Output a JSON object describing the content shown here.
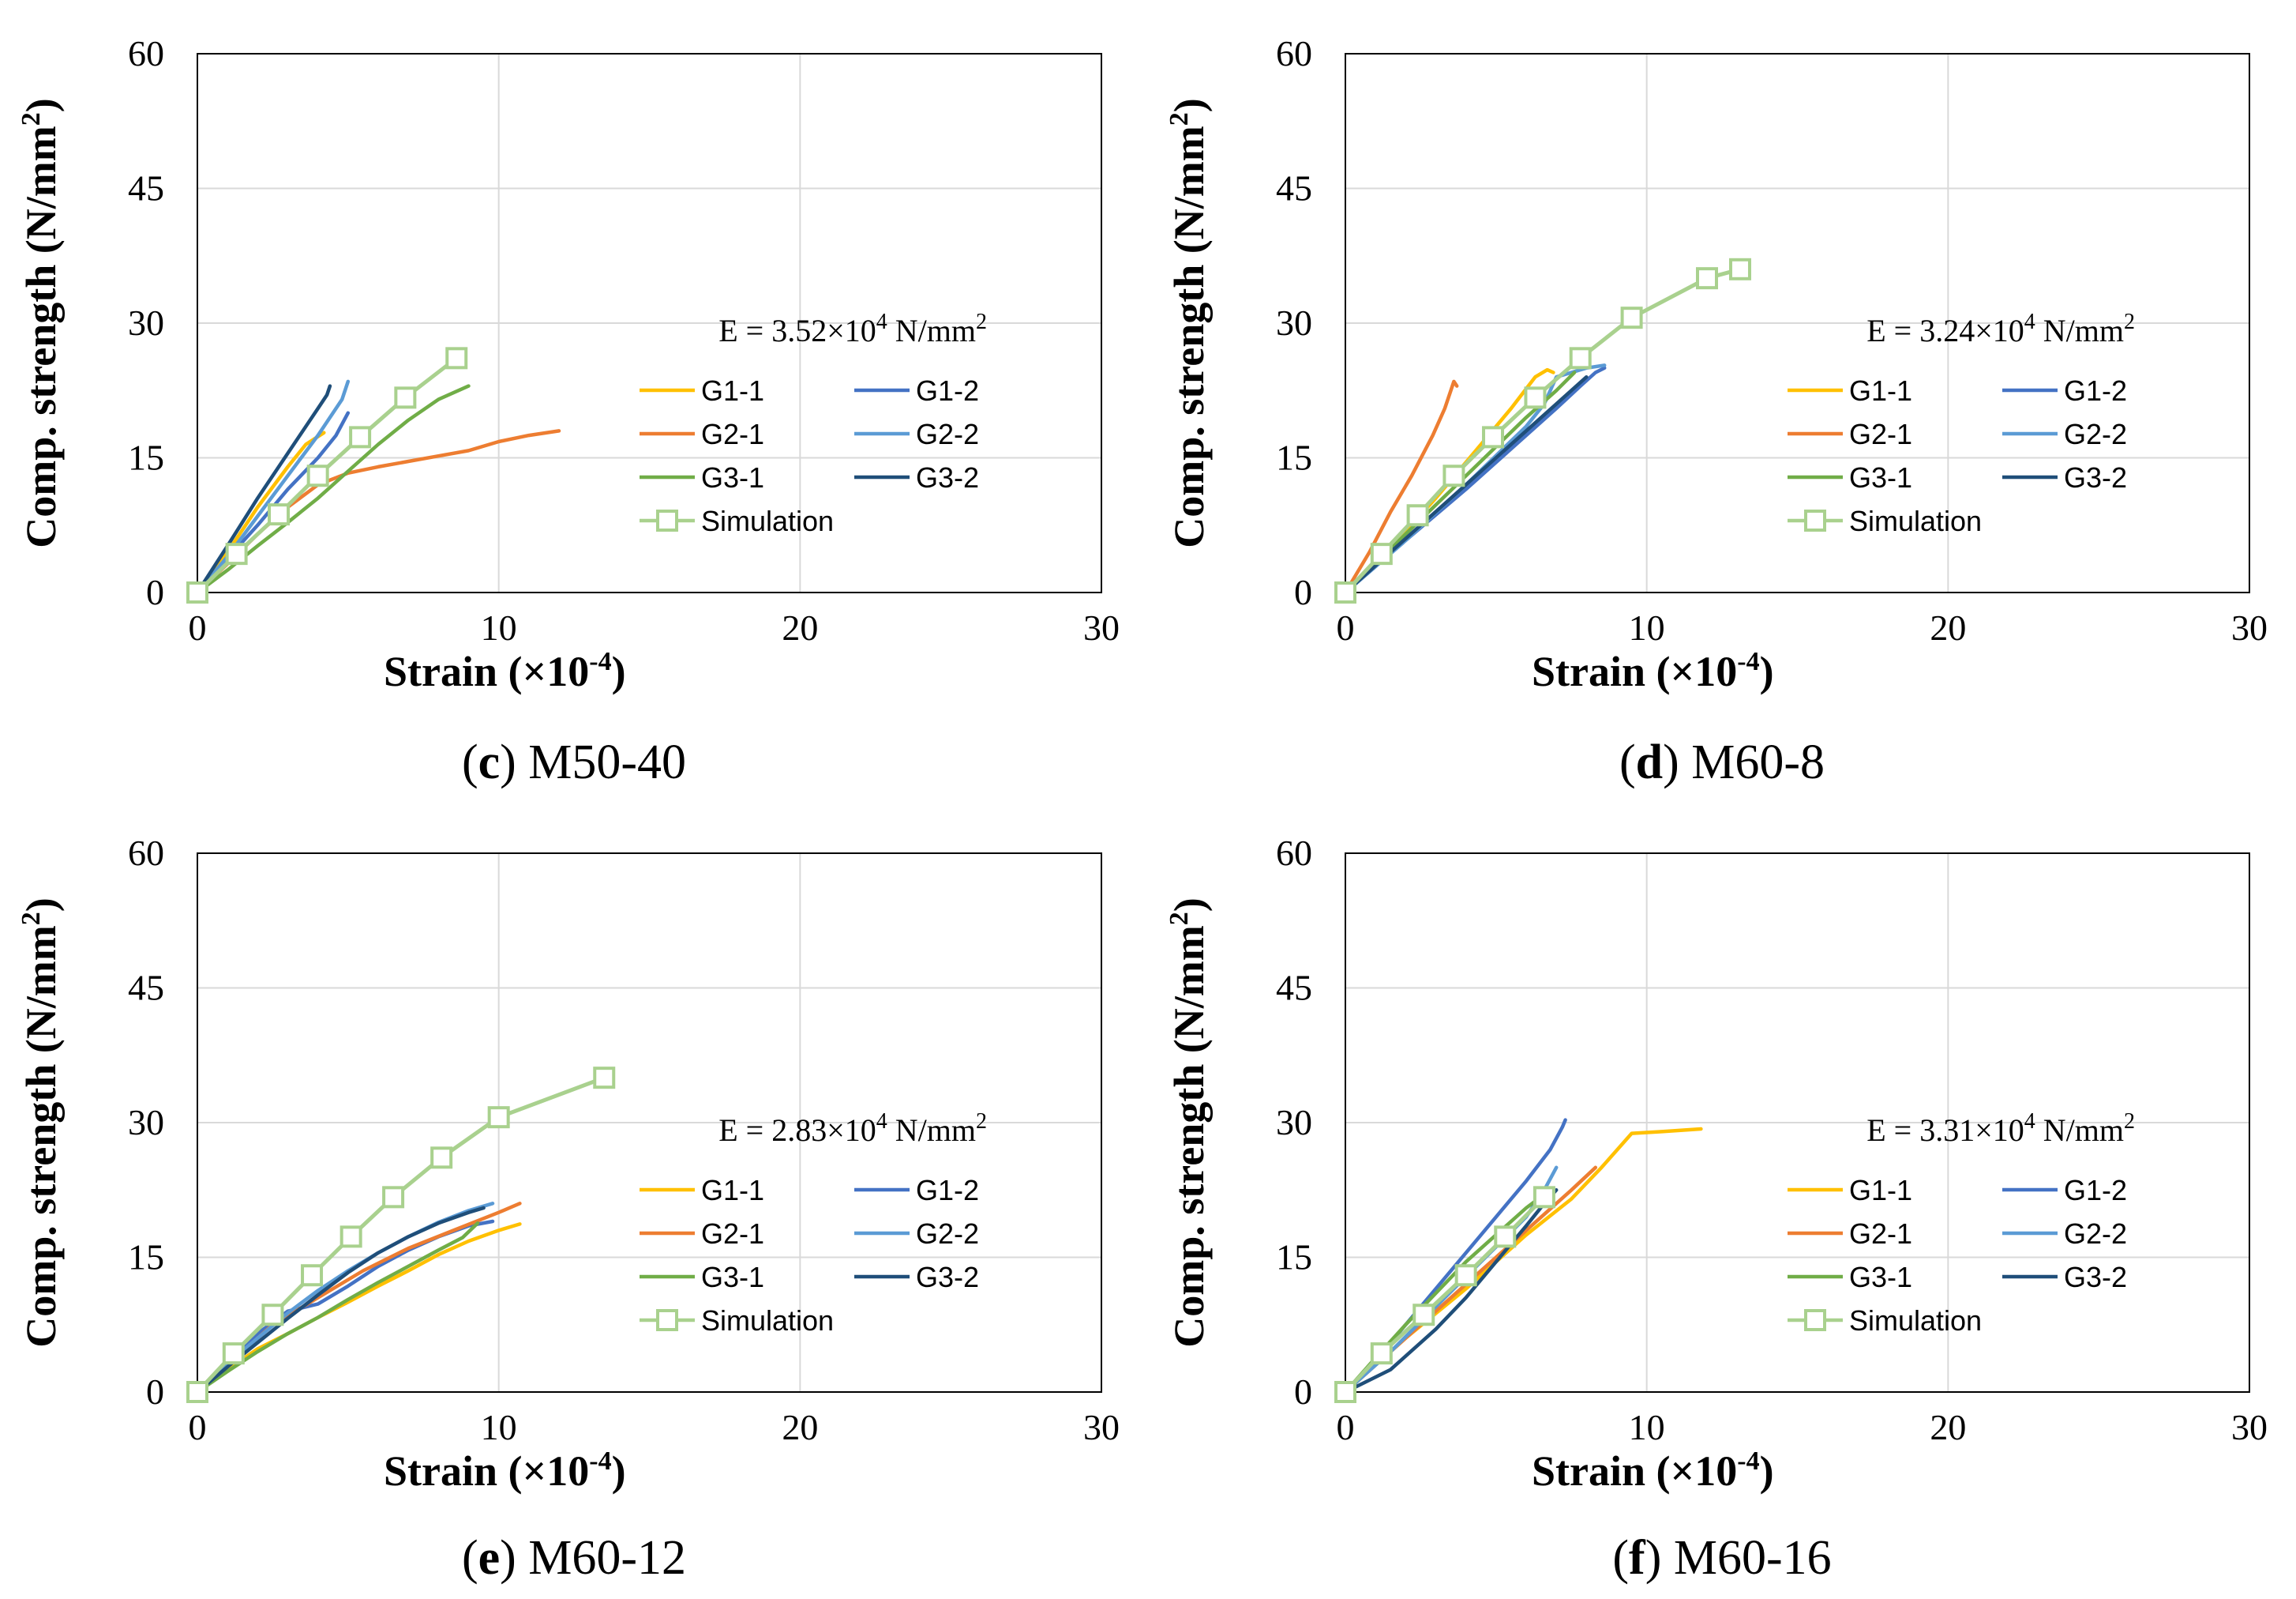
{
  "chart_data": [
    {
      "type": "line",
      "panel_letter": "c",
      "panel_name": "M50-40",
      "xlabel": "Strain (×10",
      "xlabel_sup": "-4",
      "xlabel_end": ")",
      "ylabel": "Comp. strength (N/mm",
      "ylabel_sup": "2",
      "ylabel_end": ")",
      "xlim": [
        0,
        30
      ],
      "ylim": [
        0,
        60
      ],
      "xticks": [
        0,
        10,
        20,
        30
      ],
      "yticks": [
        0,
        15,
        30,
        45,
        60
      ],
      "grid": true,
      "annotation": {
        "pre": "E = 3.52×10",
        "sup1": "4",
        "mid": " N/mm",
        "sup2": "2"
      },
      "legend_position": "right",
      "series": [
        {
          "name": "G1-1",
          "color": "#FFC000",
          "x": [
            0,
            1.0,
            2.0,
            3.0,
            3.6,
            4.2
          ],
          "y": [
            0,
            4.5,
            9.5,
            14.0,
            16.5,
            17.8
          ]
        },
        {
          "name": "G1-2",
          "color": "#4472C4",
          "x": [
            0,
            1.0,
            2.0,
            3.0,
            4.0,
            4.6,
            5.0
          ],
          "y": [
            0,
            3.8,
            7.5,
            11.5,
            15.0,
            17.5,
            20.0
          ]
        },
        {
          "name": "G2-1",
          "color": "#ED7D31",
          "x": [
            0,
            1.0,
            2.0,
            3.0,
            4.0,
            5.0,
            6.0,
            7.0,
            8.0,
            9.0,
            10.0,
            11.0,
            12.0
          ],
          "y": [
            0,
            3.2,
            6.5,
            9.5,
            12.0,
            13.3,
            14.0,
            14.6,
            15.2,
            15.8,
            16.8,
            17.5,
            18.0
          ]
        },
        {
          "name": "G2-2",
          "color": "#5B9BD5",
          "x": [
            0,
            1.0,
            2.0,
            3.0,
            4.0,
            4.8,
            5.0
          ],
          "y": [
            0,
            4.0,
            8.5,
            13.0,
            17.5,
            21.5,
            23.5
          ]
        },
        {
          "name": "G3-1",
          "color": "#70AD47",
          "x": [
            0,
            1.0,
            2.0,
            3.0,
            4.0,
            5.0,
            6.0,
            7.0,
            8.0,
            9.0
          ],
          "y": [
            0,
            2.5,
            5.2,
            7.8,
            10.5,
            13.5,
            16.5,
            19.2,
            21.5,
            23.0
          ]
        },
        {
          "name": "G3-2",
          "color": "#1F4E79",
          "x": [
            0,
            1.0,
            2.0,
            3.0,
            4.0,
            4.3,
            4.4
          ],
          "y": [
            0,
            5.2,
            10.5,
            15.5,
            20.5,
            22.0,
            23.0
          ]
        },
        {
          "name": "Simulation",
          "color": "#A9D18E",
          "marker": "square",
          "x": [
            0,
            1.3,
            2.7,
            4.0,
            5.4,
            6.9,
            8.6
          ],
          "y": [
            0,
            4.3,
            8.7,
            13.0,
            17.3,
            21.7,
            26.1
          ]
        }
      ]
    },
    {
      "type": "line",
      "panel_letter": "d",
      "panel_name": "M60-8",
      "xlabel": "Strain (×10",
      "xlabel_sup": "-4",
      "xlabel_end": ")",
      "ylabel": "Comp. strength (N/mm",
      "ylabel_sup": "2",
      "ylabel_end": ")",
      "xlim": [
        0,
        30
      ],
      "ylim": [
        0,
        60
      ],
      "xticks": [
        0,
        10,
        20,
        30
      ],
      "yticks": [
        0,
        15,
        30,
        45,
        60
      ],
      "grid": true,
      "annotation": {
        "pre": "E = 3.24×10",
        "sup1": "4",
        "mid": " N/mm",
        "sup2": "2"
      },
      "legend_position": "right",
      "series": [
        {
          "name": "G1-1",
          "color": "#FFC000",
          "x": [
            0,
            1.5,
            3.0,
            4.5,
            5.5,
            6.3,
            6.7,
            6.9
          ],
          "y": [
            0,
            5.0,
            10.5,
            16.5,
            20.5,
            24.0,
            24.8,
            24.5
          ]
        },
        {
          "name": "G1-2",
          "color": "#4472C4",
          "x": [
            0,
            2.0,
            4.0,
            6.0,
            7.0,
            7.8,
            8.3,
            8.6
          ],
          "y": [
            0,
            5.8,
            11.5,
            17.5,
            20.5,
            23.0,
            24.5,
            25.0
          ]
        },
        {
          "name": "G2-1",
          "color": "#ED7D31",
          "x": [
            0,
            0.8,
            1.5,
            2.2,
            2.9,
            3.3,
            3.6,
            3.7
          ],
          "y": [
            0,
            4.5,
            9.0,
            13.0,
            17.5,
            20.5,
            23.5,
            23.0
          ]
        },
        {
          "name": "G2-2",
          "color": "#5B9BD5",
          "x": [
            0,
            2.0,
            4.0,
            6.0,
            6.6,
            7.0,
            7.5,
            8.0,
            8.6
          ],
          "y": [
            0,
            5.8,
            12.0,
            18.5,
            21.0,
            24.0,
            24.5,
            25.0,
            25.3
          ]
        },
        {
          "name": "G3-1",
          "color": "#70AD47",
          "x": [
            0,
            2.0,
            4.0,
            6.0,
            7.0,
            7.6
          ],
          "y": [
            0,
            6.5,
            13.0,
            19.5,
            22.5,
            24.5
          ]
        },
        {
          "name": "G3-2",
          "color": "#1F4E79",
          "x": [
            0,
            2.0,
            4.0,
            6.0,
            7.0,
            8.0
          ],
          "y": [
            0,
            6.0,
            12.0,
            18.0,
            21.0,
            24.0
          ]
        },
        {
          "name": "Simulation",
          "color": "#A9D18E",
          "marker": "square",
          "x": [
            0,
            1.2,
            2.4,
            3.6,
            4.9,
            6.3,
            7.8,
            9.5,
            12.0,
            13.1
          ],
          "y": [
            0,
            4.3,
            8.6,
            13.0,
            17.3,
            21.7,
            26.1,
            30.6,
            35.0,
            36.0
          ]
        }
      ]
    },
    {
      "type": "line",
      "panel_letter": "e",
      "panel_name": "M60-12",
      "xlabel": "Strain (×10",
      "xlabel_sup": "-4",
      "xlabel_end": ")",
      "ylabel": "Comp. strength (N/mm",
      "ylabel_sup": "2",
      "ylabel_end": ")",
      "xlim": [
        0,
        30
      ],
      "ylim": [
        0,
        60
      ],
      "xticks": [
        0,
        10,
        20,
        30
      ],
      "yticks": [
        0,
        15,
        30,
        45,
        60
      ],
      "grid": true,
      "annotation": {
        "pre": "E = 2.83×10",
        "sup1": "4",
        "mid": " N/mm",
        "sup2": "2"
      },
      "legend_position": "right",
      "series": [
        {
          "name": "G1-1",
          "color": "#FFC000",
          "x": [
            0,
            1.0,
            2.0,
            3.0,
            4.0,
            5.0,
            6.0,
            7.0,
            8.0,
            9.0,
            10.0,
            10.7
          ],
          "y": [
            0,
            2.5,
            4.8,
            6.5,
            8.3,
            10.0,
            11.8,
            13.5,
            15.3,
            16.8,
            18.0,
            18.7
          ]
        },
        {
          "name": "G1-2",
          "color": "#4472C4",
          "x": [
            0,
            1.0,
            2.0,
            3.0,
            4.0,
            5.0,
            6.0,
            7.0,
            8.0,
            9.0,
            9.8
          ],
          "y": [
            0,
            3.5,
            6.5,
            9.0,
            9.8,
            11.8,
            14.0,
            15.8,
            17.3,
            18.5,
            19.0
          ]
        },
        {
          "name": "G2-1",
          "color": "#ED7D31",
          "x": [
            0,
            0.7,
            1.5,
            2.5,
            4.0,
            5.5,
            7.0,
            8.5,
            10.0,
            10.7
          ],
          "y": [
            0,
            2.5,
            4.5,
            7.5,
            10.5,
            13.5,
            16.0,
            18.0,
            20.0,
            21.0
          ]
        },
        {
          "name": "G2-2",
          "color": "#5B9BD5",
          "x": [
            0,
            1.0,
            2.0,
            3.0,
            4.0,
            5.0,
            6.0,
            7.0,
            8.0,
            9.0,
            9.8
          ],
          "y": [
            0,
            3.2,
            6.0,
            8.8,
            11.3,
            13.5,
            15.5,
            17.3,
            18.9,
            20.2,
            21.0
          ]
        },
        {
          "name": "G3-1",
          "color": "#70AD47",
          "x": [
            0,
            1.0,
            2.0,
            3.0,
            4.0,
            5.0,
            6.0,
            7.0,
            8.0,
            8.8,
            9.3
          ],
          "y": [
            0,
            2.3,
            4.5,
            6.5,
            8.3,
            10.3,
            12.2,
            14.0,
            15.8,
            17.2,
            18.8
          ]
        },
        {
          "name": "G3-2",
          "color": "#1F4E79",
          "x": [
            0,
            1.0,
            2.0,
            3.0,
            4.0,
            5.0,
            6.0,
            7.0,
            8.0,
            9.0,
            9.5
          ],
          "y": [
            0,
            2.8,
            5.5,
            8.2,
            10.8,
            13.3,
            15.5,
            17.3,
            18.8,
            20.0,
            20.5
          ]
        },
        {
          "name": "Simulation",
          "color": "#A9D18E",
          "marker": "square",
          "x": [
            0,
            1.2,
            2.5,
            3.8,
            5.1,
            6.5,
            8.1,
            10.0,
            13.5
          ],
          "y": [
            0,
            4.3,
            8.6,
            13.0,
            17.3,
            21.7,
            26.1,
            30.6,
            35.0
          ]
        }
      ]
    },
    {
      "type": "line",
      "panel_letter": "f",
      "panel_name": "M60-16",
      "xlabel": "Strain (×10",
      "xlabel_sup": "-4",
      "xlabel_end": ")",
      "ylabel": "Comp. strength (N/mm",
      "ylabel_sup": "2",
      "ylabel_end": ")",
      "xlim": [
        0,
        30
      ],
      "ylim": [
        0,
        60
      ],
      "xticks": [
        0,
        10,
        20,
        30
      ],
      "yticks": [
        0,
        15,
        30,
        45,
        60
      ],
      "grid": true,
      "annotation": {
        "pre": "E = 3.31×10",
        "sup1": "4",
        "mid": " N/mm",
        "sup2": "2"
      },
      "legend_position": "right",
      "series": [
        {
          "name": "G1-1",
          "color": "#FFC000",
          "x": [
            0,
            2.0,
            4.0,
            6.0,
            7.5,
            8.5,
            9.5,
            10.5,
            11.8
          ],
          "y": [
            0,
            6.0,
            11.5,
            17.5,
            21.5,
            25.0,
            28.8,
            29.0,
            29.3
          ]
        },
        {
          "name": "G1-2",
          "color": "#4472C4",
          "x": [
            0,
            1.0,
            2.0,
            3.0,
            4.0,
            5.0,
            6.0,
            6.8,
            7.2,
            7.3
          ],
          "y": [
            0,
            3.5,
            7.5,
            11.5,
            15.5,
            19.5,
            23.5,
            27.0,
            29.5,
            30.3
          ]
        },
        {
          "name": "G2-1",
          "color": "#ED7D31",
          "x": [
            0,
            2.0,
            4.0,
            6.0,
            7.5,
            8.3
          ],
          "y": [
            0,
            6.0,
            12.0,
            18.0,
            22.5,
            25.0
          ]
        },
        {
          "name": "G2-2",
          "color": "#5B9BD5",
          "x": [
            0,
            1.5,
            3.0,
            4.5,
            6.0,
            6.6,
            7.0
          ],
          "y": [
            0,
            4.5,
            9.5,
            14.5,
            19.5,
            22.5,
            25.0
          ]
        },
        {
          "name": "G3-1",
          "color": "#70AD47",
          "x": [
            0,
            1.0,
            2.0,
            3.0,
            4.0,
            5.0,
            6.0,
            6.6
          ],
          "y": [
            0,
            3.8,
            7.5,
            11.0,
            14.5,
            17.5,
            20.5,
            22.0
          ]
        },
        {
          "name": "G3-2",
          "color": "#1F4E79",
          "x": [
            0,
            1.5,
            3.0,
            4.0,
            5.0,
            6.0,
            6.6,
            7.0
          ],
          "y": [
            0,
            2.5,
            7.0,
            10.5,
            14.5,
            18.5,
            21.0,
            22.5
          ]
        },
        {
          "name": "Simulation",
          "color": "#A9D18E",
          "marker": "square",
          "x": [
            0,
            1.2,
            2.6,
            4.0,
            5.3,
            6.6
          ],
          "y": [
            0,
            4.3,
            8.6,
            13.0,
            17.3,
            21.7
          ]
        }
      ]
    }
  ]
}
